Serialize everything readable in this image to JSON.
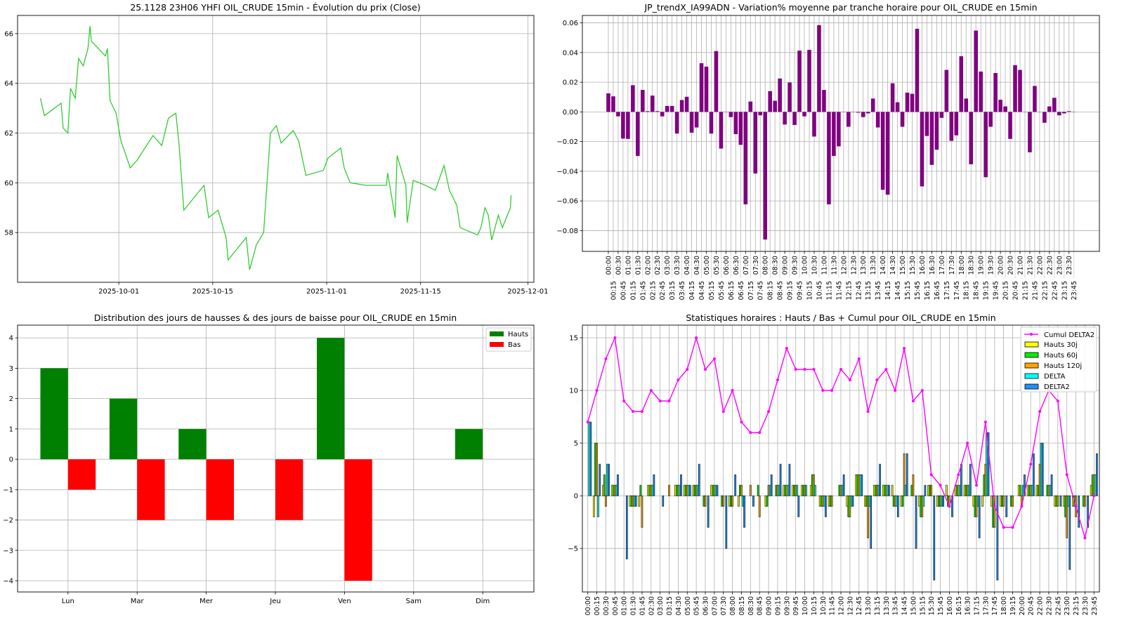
{
  "chart_data": [
    {
      "type": "line",
      "title": "25.1128 23H06 YHFI OIL_CRUDE 15min - Évolution du prix (Close)",
      "xlabel": "",
      "ylabel": "",
      "x_unit": "days since 2025-10-01",
      "xlim": [
        -15.1,
        61.9
      ],
      "ylim": [
        56.0,
        66.73
      ],
      "grid": true,
      "color": "#33cc33",
      "x_ticks": [
        {
          "v": 0,
          "label": "2025-10-01"
        },
        {
          "v": 14,
          "label": "2025-10-15"
        },
        {
          "v": 31,
          "label": "2025-11-01"
        },
        {
          "v": 45,
          "label": "2025-11-15"
        },
        {
          "v": 61,
          "label": "2025-12-01"
        }
      ],
      "y_ticks": [
        {
          "v": 58,
          "label": "58"
        },
        {
          "v": 60,
          "label": "60"
        },
        {
          "v": 62,
          "label": "62"
        },
        {
          "v": 64,
          "label": "64"
        },
        {
          "v": 66,
          "label": "66"
        }
      ],
      "x": [
        -11.7,
        -11.1,
        -8.6,
        -8.3,
        -7.6,
        -7.2,
        -6.5,
        -6.0,
        -5.3,
        -4.6,
        -4.3,
        -4.1,
        -2.0,
        -1.7,
        -1.3,
        -0.4,
        0.3,
        1.7,
        2.7,
        5.1,
        6.4,
        7.4,
        8.5,
        9.0,
        9.7,
        12.7,
        13.4,
        14.8,
        16.0,
        16.3,
        19.0,
        19.5,
        20.5,
        21.6,
        22.6,
        23.5,
        24.2,
        26.0,
        26.8,
        27.9,
        30.5,
        31.2,
        33.1,
        33.6,
        34.5,
        36.8,
        39.9,
        40.1,
        41.2,
        41.5,
        42.8,
        43.0,
        43.9,
        45.7,
        47.2,
        48.5,
        49.3,
        50.4,
        50.9,
        53.5,
        54.0,
        54.6,
        55.1,
        55.6,
        56.6,
        57.2,
        58.4,
        58.5
      ],
      "y": [
        63.4,
        62.7,
        63.2,
        62.2,
        62.0,
        63.8,
        63.4,
        65.0,
        64.7,
        65.4,
        66.3,
        65.7,
        65.1,
        65.4,
        63.3,
        62.8,
        61.7,
        60.6,
        60.9,
        61.9,
        61.5,
        62.6,
        62.8,
        61.5,
        58.9,
        59.9,
        58.6,
        58.9,
        57.8,
        56.9,
        57.8,
        56.5,
        57.5,
        58.0,
        62.0,
        62.3,
        61.6,
        62.1,
        61.7,
        60.3,
        60.5,
        61.0,
        61.4,
        60.6,
        60.0,
        59.9,
        59.9,
        60.4,
        58.6,
        61.1,
        59.9,
        58.4,
        60.1,
        59.9,
        59.7,
        60.7,
        59.7,
        59.1,
        58.2,
        57.9,
        58.2,
        59.0,
        58.7,
        57.7,
        58.7,
        58.2,
        59.0,
        59.5
      ]
    },
    {
      "type": "bar",
      "title": "JP_trendX_IA99ADN - Variation% moyenne par tranche horaire pour OIL_CRUDE en 15min",
      "xlabel": "",
      "ylabel": "",
      "ylim": [
        -0.094,
        0.065
      ],
      "grid": true,
      "color": "#800080",
      "y_ticks": [
        {
          "v": 0.06,
          "label": "0.06"
        },
        {
          "v": 0.04,
          "label": "0.04"
        },
        {
          "v": 0.02,
          "label": "0.02"
        },
        {
          "v": 0,
          "label": "0.00"
        },
        {
          "v": -0.02,
          "label": "−0.02"
        },
        {
          "v": -0.04,
          "label": "−0.04"
        },
        {
          "v": -0.06,
          "label": "−0.06"
        },
        {
          "v": -0.08,
          "label": "−0.08"
        }
      ],
      "categories": [
        "00:00",
        "00:15",
        "00:30",
        "00:45",
        "01:00",
        "01:15",
        "01:30",
        "01:45",
        "02:00",
        "02:15",
        "02:30",
        "02:45",
        "03:00",
        "03:15",
        "03:30",
        "03:45",
        "04:00",
        "04:15",
        "04:30",
        "04:45",
        "05:00",
        "05:15",
        "05:30",
        "05:45",
        "06:00",
        "06:15",
        "06:30",
        "06:45",
        "07:00",
        "07:15",
        "07:30",
        "07:45",
        "08:00",
        "08:15",
        "08:30",
        "08:45",
        "09:00",
        "09:15",
        "09:30",
        "09:45",
        "10:00",
        "10:15",
        "10:30",
        "10:45",
        "11:00",
        "11:15",
        "11:30",
        "11:45",
        "12:00",
        "12:15",
        "12:30",
        "12:45",
        "13:00",
        "13:15",
        "13:30",
        "13:45",
        "14:00",
        "14:15",
        "14:30",
        "14:45",
        "15:00",
        "15:15",
        "15:30",
        "15:45",
        "16:00",
        "16:15",
        "16:30",
        "16:45",
        "17:00",
        "17:15",
        "17:30",
        "17:45",
        "18:00",
        "18:15",
        "18:30",
        "18:45",
        "19:00",
        "19:15",
        "19:30",
        "19:45",
        "20:00",
        "20:15",
        "20:30",
        "20:45",
        "21:00",
        "21:15",
        "21:30",
        "21:45",
        "22:00",
        "22:15",
        "22:30",
        "22:45",
        "23:00",
        "23:15",
        "23:30",
        "23:45"
      ],
      "values": [
        0.0125,
        0.0105,
        -0.003,
        -0.018,
        -0.0182,
        0.018,
        -0.0297,
        0.0148,
        0.0005,
        0.011,
        0.0005,
        -0.003,
        0.004,
        0.004,
        -0.0146,
        0.008,
        0.0102,
        -0.014,
        -0.0105,
        0.0328,
        0.0305,
        -0.0146,
        0.041,
        -0.0247,
        0,
        -0.0035,
        -0.015,
        -0.0222,
        -0.0623,
        0.007,
        -0.0415,
        -0.0023,
        -0.086,
        0.014,
        0.0075,
        0.0225,
        -0.0085,
        0.0198,
        -0.0088,
        0.0413,
        -0.003,
        0.0418,
        -0.0166,
        0.0585,
        0.0148,
        -0.0623,
        -0.0297,
        -0.0232,
        0,
        -0.01,
        0,
        -0.0005,
        -0.0035,
        -0.001,
        0.009,
        -0.0105,
        -0.0525,
        -0.0558,
        0.0193,
        0.0065,
        -0.01,
        0.013,
        0.0122,
        0.056,
        -0.0502,
        -0.0162,
        -0.0357,
        -0.0255,
        -0.004,
        0.0283,
        -0.0195,
        -0.0158,
        0.0375,
        0.009,
        -0.0353,
        0.0548,
        0.0272,
        -0.044,
        -0.01,
        0.0262,
        0.0082,
        0.0037,
        -0.0182,
        0.0315,
        0.0283,
        0,
        -0.0272,
        0.0175,
        0,
        -0.0073,
        0.0037,
        0.0095,
        -0.0023,
        -0.001,
        0.0005,
        0
      ]
    },
    {
      "type": "bar",
      "title": "Distribution des jours de hausses & des jours de baisse pour OIL_CRUDE en 15min",
      "xlabel": "",
      "ylabel": "",
      "ylim": [
        -4.37,
        4.42
      ],
      "grid": true,
      "legend": "top-right",
      "y_ticks": [
        {
          "v": 4,
          "label": "4"
        },
        {
          "v": 3,
          "label": "3"
        },
        {
          "v": 2,
          "label": "2"
        },
        {
          "v": 1,
          "label": "1"
        },
        {
          "v": 0,
          "label": "0"
        },
        {
          "v": -1,
          "label": "−1"
        },
        {
          "v": -2,
          "label": "−2"
        },
        {
          "v": -3,
          "label": "−3"
        },
        {
          "v": -4,
          "label": "−4"
        }
      ],
      "categories": [
        "Lun",
        "Mar",
        "Mer",
        "Jeu",
        "Ven",
        "Sam",
        "Dim"
      ],
      "series": [
        {
          "name": "Hauts",
          "color": "#008000",
          "values": [
            3,
            2,
            1,
            0,
            4,
            0,
            1
          ]
        },
        {
          "name": "Bas",
          "color": "#ff0000",
          "values": [
            -1,
            -2,
            -2,
            -2,
            -4,
            0,
            0
          ]
        }
      ]
    },
    {
      "type": "bar",
      "title": "Statistiques horaires : Hauts / Bas + Cumul pour OIL_CRUDE en 15min",
      "xlabel": "",
      "ylabel": "",
      "ylim": [
        -9.13,
        16.2
      ],
      "grid": true,
      "legend": "top-right",
      "y_ticks": [
        {
          "v": 15,
          "label": "15"
        },
        {
          "v": 10,
          "label": "10"
        },
        {
          "v": 5,
          "label": "5"
        },
        {
          "v": 0,
          "label": "0"
        },
        {
          "v": -5,
          "label": "−5"
        }
      ],
      "categories": [
        "00:00",
        "00:15",
        "00:30",
        "00:45",
        "01:00",
        "01:30",
        "01:45",
        "02:30",
        "03:00",
        "03:15",
        "04:30",
        "05:00",
        "05:45",
        "06:30",
        "07:00",
        "07:30",
        "08:00",
        "08:15",
        "08:30",
        "08:45",
        "09:00",
        "09:15",
        "09:30",
        "09:45",
        "10:00",
        "10:15",
        "10:30",
        "11:45",
        "12:00",
        "12:30",
        "12:45",
        "13:00",
        "13:15",
        "13:30",
        "13:45",
        "14:45",
        "15:00",
        "15:15",
        "15:30",
        "15:45",
        "16:00",
        "16:15",
        "16:30",
        "17:15",
        "17:30",
        "17:45",
        "18:00",
        "19:15",
        "20:00",
        "20:45",
        "22:00",
        "22:30",
        "22:45",
        "23:00",
        "23:15",
        "23:30",
        "23:45"
      ],
      "line": {
        "name": "Cumul DELTA2",
        "color": "#ff00ff",
        "values": [
          7,
          10,
          13,
          15,
          9,
          8,
          8,
          10,
          9,
          9,
          11,
          12,
          15,
          12,
          13,
          8,
          10,
          7,
          6,
          6,
          8,
          11,
          14,
          12,
          12,
          12,
          10,
          10,
          12,
          11,
          13,
          8,
          11,
          12,
          10,
          14,
          9,
          10,
          2,
          1,
          -1,
          2,
          5,
          1,
          7,
          -1,
          -3,
          -3,
          -1,
          3,
          8,
          10,
          9,
          2,
          -1,
          -4,
          0
        ]
      },
      "series": [
        {
          "name": "Hauts 30j",
          "color": "#ffff00",
          "values": [
            0,
            -2,
            1,
            1,
            0,
            -1,
            -1,
            1,
            0,
            0,
            1,
            1,
            1,
            0,
            1,
            0,
            -1,
            -1,
            0,
            0,
            -1,
            0,
            1,
            1,
            1,
            1,
            -1,
            -1,
            0,
            -1,
            2,
            -1,
            1,
            1,
            1,
            -1,
            0,
            -1,
            1,
            -1,
            1,
            1,
            1,
            -1,
            -1,
            -1,
            -1,
            0,
            1,
            1,
            1,
            0,
            -1,
            -1,
            -1,
            0,
            1
          ]
        },
        {
          "name": "Hauts 60j",
          "color": "#00ee00",
          "values": [
            0,
            5,
            2,
            1,
            0,
            -1,
            1,
            1,
            0,
            0,
            1,
            1,
            1,
            -1,
            1,
            -1,
            -1,
            1,
            0,
            1,
            -1,
            1,
            1,
            1,
            1,
            2,
            -1,
            -1,
            1,
            -2,
            2,
            -1,
            1,
            1,
            -1,
            -1,
            1,
            -2,
            1,
            -1,
            -1,
            1,
            1,
            -2,
            2,
            -3,
            -1,
            -1,
            1,
            1,
            1,
            1,
            -1,
            -2,
            -1,
            -1,
            2
          ]
        },
        {
          "name": "Hauts 120j",
          "color": "#ffa500",
          "values": [
            0,
            5,
            -1,
            1,
            0,
            -1,
            -3,
            1,
            0,
            1,
            1,
            1,
            1,
            -1,
            1,
            -1,
            -1,
            1,
            1,
            -2,
            1,
            1,
            1,
            1,
            1,
            2,
            -1,
            -1,
            1,
            -2,
            2,
            -4,
            1,
            1,
            -1,
            4,
            2,
            -2,
            1,
            -1,
            -1,
            1,
            1,
            -2,
            3,
            -3,
            -1,
            -1,
            -1,
            1,
            3,
            1,
            -1,
            -4,
            -2,
            -1,
            2
          ]
        },
        {
          "name": "DELTA",
          "color": "#00ffff",
          "values": [
            7,
            -2,
            3,
            1,
            0,
            -1,
            0,
            1,
            0,
            0,
            1,
            1,
            1,
            0,
            1,
            0,
            0,
            -1,
            0,
            0,
            1,
            1,
            1,
            1,
            1,
            1,
            -1,
            0,
            1,
            -1,
            2,
            -1,
            1,
            1,
            -1,
            1,
            0,
            -1,
            0,
            -1,
            0,
            1,
            1,
            -1,
            6,
            0,
            0,
            0,
            1,
            1,
            5,
            1,
            0,
            -1,
            0,
            0,
            2
          ]
        },
        {
          "name": "DELTA2",
          "color": "#1e90ff",
          "values": [
            7,
            3,
            3,
            2,
            -6,
            -1,
            0,
            2,
            -1,
            0,
            2,
            1,
            3,
            -3,
            1,
            -5,
            2,
            -3,
            -1,
            0,
            2,
            3,
            3,
            -2,
            0,
            0,
            -2,
            0,
            2,
            -1,
            2,
            -5,
            3,
            1,
            -2,
            4,
            -5,
            1,
            -8,
            -1,
            -2,
            3,
            3,
            -4,
            6,
            -8,
            -2,
            0,
            2,
            4,
            5,
            2,
            -1,
            -7,
            -3,
            -3,
            4
          ]
        }
      ]
    }
  ]
}
